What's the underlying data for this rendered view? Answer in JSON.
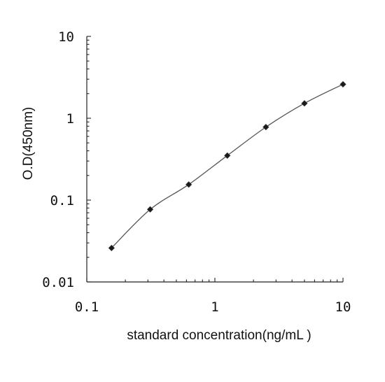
{
  "chart_data": {
    "type": "line",
    "x_scale": "log",
    "y_scale": "log",
    "xlabel": "standard concentration(ng/mL  )",
    "ylabel": "O.D(450nm)",
    "xlim": [
      0.1,
      10
    ],
    "ylim": [
      0.01,
      10
    ],
    "x_ticks": [
      {
        "value": 0.1,
        "label": "0.1"
      },
      {
        "value": 1,
        "label": "1"
      },
      {
        "value": 10,
        "label": "10"
      }
    ],
    "y_ticks": [
      {
        "value": 0.01,
        "label": "0.01"
      },
      {
        "value": 0.1,
        "label": "0.1"
      },
      {
        "value": 1,
        "label": "1"
      },
      {
        "value": 10,
        "label": "10"
      }
    ],
    "grid": false,
    "marker": "diamond",
    "series": [
      {
        "x": [
          0.156,
          0.3125,
          0.625,
          1.25,
          2.5,
          5,
          10
        ],
        "y": [
          0.026,
          0.077,
          0.155,
          0.35,
          0.78,
          1.52,
          2.6
        ]
      }
    ]
  }
}
